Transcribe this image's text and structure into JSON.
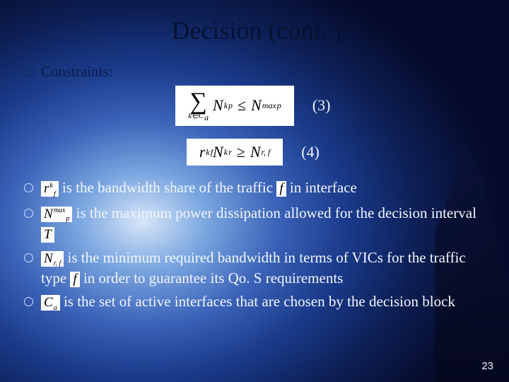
{
  "title": "Decision (cont. )",
  "page_number": "23",
  "constraints_label": "Constraints:",
  "equations": {
    "eq3": {
      "number": "(3)",
      "sigma_sub": "k∈C",
      "sigma_sub_a": "a",
      "lhs_base": "N",
      "lhs_sup": "k",
      "lhs_sub": "p",
      "op": "≤",
      "rhs_base": "N",
      "rhs_sup": "max",
      "rhs_sub": "p"
    },
    "eq4": {
      "number": "(4)",
      "a_base": "r",
      "a_sup": "k",
      "a_sub": "f",
      "b_base": "N",
      "b_sup": "k",
      "b_sub": "r",
      "op": "≥",
      "c_base": "N",
      "c_sub": "r, f"
    }
  },
  "defs": {
    "d1": {
      "sym_base": "r",
      "sym_sup": "k",
      "sym_sub": "f",
      "pre": " is the bandwidth share of the traffic ",
      "mid_sym": "f",
      "post": " in interface"
    },
    "d2": {
      "sym_base": "N",
      "sym_sup": "max",
      "sym_sub": "p",
      "text": " is the maximum power dissipation allowed for the decision interval ",
      "tail_sym": "T"
    },
    "d3": {
      "sym_base": "N",
      "sym_sub": "r, f",
      "pre": " is the minimum required bandwidth in terms of VICs for the traffic type ",
      "mid_sym": "f",
      "post": " in order to guarantee its Qo. S requirements"
    },
    "d4": {
      "sym_base": "C",
      "sym_sub": "a",
      "text": " is the set of active interfaces that are chosen by the decision block"
    }
  },
  "style": {
    "title_fontsize": 36,
    "body_fontsize": 21,
    "eq_fontsize": 22,
    "colors": {
      "title": "#07112f",
      "upper_text": "#0b1d44",
      "lower_text": "#f2f6ff",
      "eq_bg": "#ffffff",
      "pagenum": "#edf2ff"
    }
  }
}
